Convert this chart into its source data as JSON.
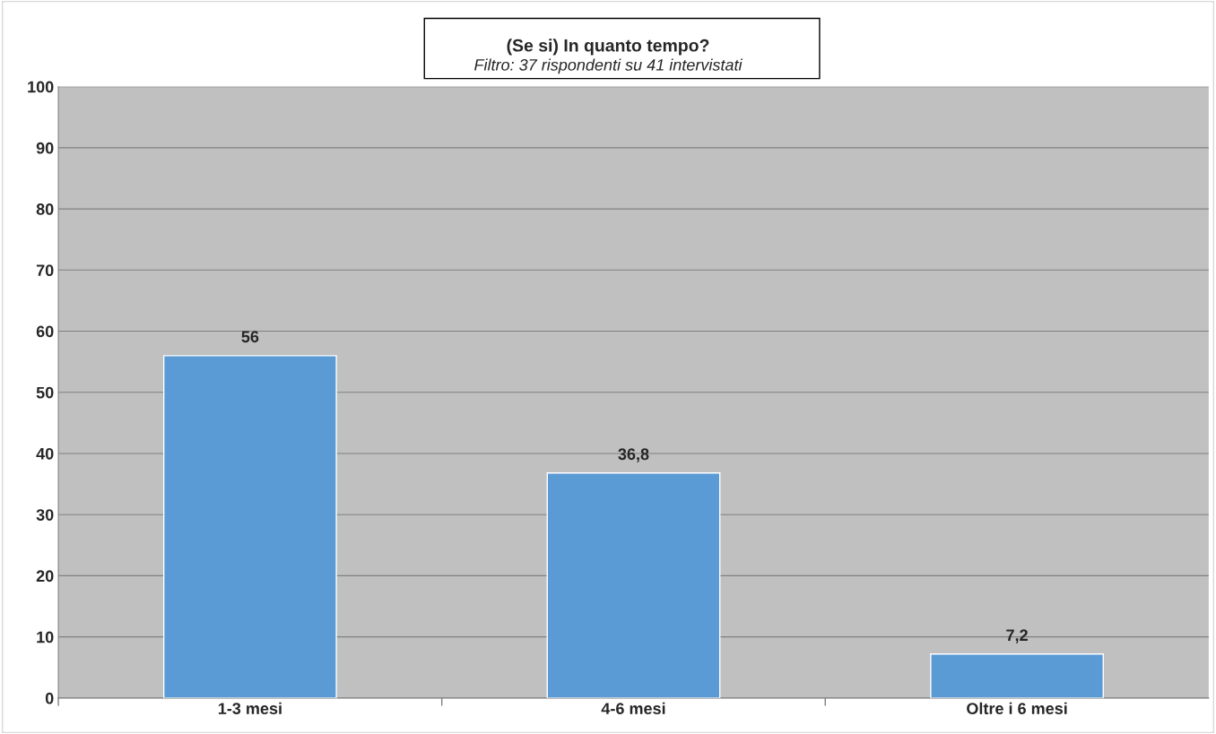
{
  "chart_data": {
    "type": "bar",
    "title": "(Se si) In quanto tempo?",
    "subtitle": "Filtro: 37 rispondenti su 41 intervistati",
    "categories": [
      "1-3 mesi",
      "4-6 mesi",
      "Oltre i 6 mesi"
    ],
    "values": [
      56,
      36.8,
      7.2
    ],
    "value_labels": [
      "56",
      "36,8",
      "7,2"
    ],
    "color": "#5b9bd5",
    "ylim": [
      0,
      100
    ],
    "yticks": [
      0,
      10,
      20,
      30,
      40,
      50,
      60,
      70,
      80,
      90,
      100
    ],
    "grid": "y",
    "legend": false
  }
}
